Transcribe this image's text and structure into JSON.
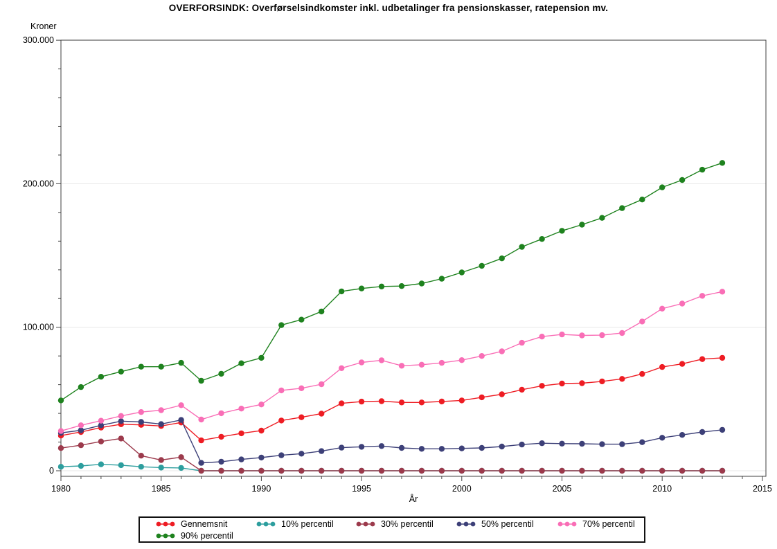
{
  "chart_data": {
    "type": "line",
    "title": "OVERFORSINDK: Overførselsindkomster inkl. udbetalinger fra pensionskasser, ratepension mv.",
    "ylabel": "Kroner",
    "xlabel": "År",
    "ylim": [
      0,
      300000
    ],
    "xlim": [
      1980,
      2015
    ],
    "grid": "horizontal-major",
    "legend_position": "bottom",
    "y_ticks": [
      {
        "value": 0,
        "label": "0"
      },
      {
        "value": 100000,
        "label": "100.000"
      },
      {
        "value": 200000,
        "label": "200.000"
      },
      {
        "value": 300000,
        "label": "300.000"
      }
    ],
    "y_minor_tick_step": 20000,
    "x_ticks": [
      {
        "value": 1980,
        "label": "1980"
      },
      {
        "value": 1985,
        "label": "1985"
      },
      {
        "value": 1990,
        "label": "1990"
      },
      {
        "value": 1995,
        "label": "1995"
      },
      {
        "value": 2000,
        "label": "2000"
      },
      {
        "value": 2005,
        "label": "2005"
      },
      {
        "value": 2010,
        "label": "2010"
      },
      {
        "value": 2015,
        "label": "2015"
      }
    ],
    "x_minor_tick_step": 1,
    "x": [
      1980,
      1981,
      1982,
      1983,
      1984,
      1985,
      1986,
      1987,
      1988,
      1989,
      1990,
      1991,
      1992,
      1993,
      1994,
      1995,
      1996,
      1997,
      1998,
      1999,
      2000,
      2001,
      2002,
      2003,
      2004,
      2005,
      2006,
      2007,
      2008,
      2009,
      2010,
      2011,
      2012,
      2013
    ],
    "series": [
      {
        "name": "Gennemsnit",
        "color": "#ee1c23",
        "values": [
          24500,
          27000,
          30100,
          32400,
          32000,
          31200,
          33600,
          21200,
          23700,
          26100,
          28000,
          35000,
          37300,
          39800,
          47000,
          48200,
          48500,
          47600,
          47600,
          48300,
          49000,
          51200,
          53300,
          56500,
          59200,
          60800,
          61000,
          62300,
          64000,
          67500,
          72300,
          74500,
          77800,
          78700
        ]
      },
      {
        "name": "10% percentil",
        "color": "#2d9e9e",
        "values": [
          2800,
          3400,
          4500,
          3900,
          2800,
          2200,
          2000,
          0,
          0,
          0,
          0,
          0,
          0,
          0,
          0,
          0,
          0,
          0,
          0,
          0,
          0,
          0,
          0,
          0,
          0,
          0,
          0,
          0,
          0,
          0,
          0,
          0,
          0,
          0
        ]
      },
      {
        "name": "30% percentil",
        "color": "#9c3a4c",
        "values": [
          15800,
          17800,
          20400,
          22500,
          10500,
          7500,
          9500,
          0,
          0,
          0,
          0,
          0,
          0,
          0,
          0,
          0,
          0,
          0,
          0,
          0,
          0,
          0,
          0,
          0,
          0,
          0,
          0,
          0,
          0,
          0,
          0,
          0,
          0,
          0
        ]
      },
      {
        "name": "50% percentil",
        "color": "#3d4078",
        "values": [
          26400,
          28200,
          31700,
          34600,
          34000,
          32500,
          35400,
          5500,
          6300,
          7900,
          9200,
          10800,
          11900,
          13700,
          16100,
          16700,
          17200,
          15900,
          15300,
          15300,
          15600,
          15900,
          16900,
          18300,
          19200,
          18900,
          18800,
          18500,
          18500,
          19900,
          23000,
          25000,
          27000,
          28500
        ]
      },
      {
        "name": "70% percentil",
        "color": "#f96eb6",
        "values": [
          27700,
          31700,
          34900,
          38200,
          40900,
          42200,
          45700,
          35700,
          40100,
          43300,
          46200,
          56000,
          57500,
          60300,
          71500,
          75500,
          77000,
          73200,
          73900,
          75200,
          77100,
          80000,
          83200,
          89200,
          93500,
          95000,
          94300,
          94500,
          96000,
          104000,
          113000,
          116500,
          121900,
          124800
        ]
      },
      {
        "name": "90% percentil",
        "color": "#1e821e",
        "values": [
          49000,
          58300,
          65500,
          69100,
          72500,
          72500,
          75200,
          62700,
          67600,
          74900,
          78700,
          101500,
          105300,
          111000,
          125000,
          127000,
          128400,
          128700,
          130500,
          133800,
          138200,
          142800,
          148000,
          156000,
          161500,
          167200,
          171500,
          176200,
          183000,
          189000,
          197500,
          202600,
          209800,
          214500
        ]
      }
    ]
  }
}
